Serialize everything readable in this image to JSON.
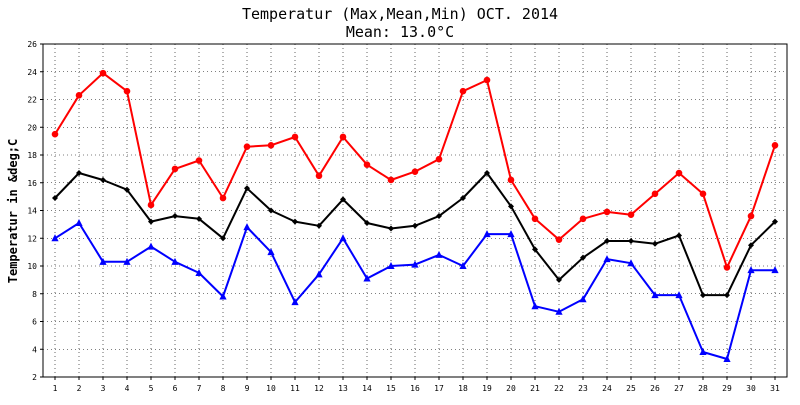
{
  "chart_data": {
    "type": "line",
    "title": "Temperatur (Max,Mean,Min) OCT. 2014",
    "subtitle": "Mean: 13.0°C",
    "xlabel": "",
    "ylabel": "Temperatur in &deg;C",
    "ylim": [
      2,
      26
    ],
    "yticks": [
      "2",
      "4",
      "6",
      "8",
      "10",
      "12",
      "14",
      "16",
      "18",
      "20",
      "22",
      "24",
      "26"
    ],
    "categories": [
      "1",
      "2",
      "3",
      "4",
      "5",
      "6",
      "7",
      "8",
      "9",
      "10",
      "11",
      "12",
      "13",
      "14",
      "15",
      "16",
      "17",
      "18",
      "19",
      "20",
      "21",
      "22",
      "23",
      "24",
      "25",
      "26",
      "27",
      "28",
      "29",
      "30",
      "31"
    ],
    "grid": true,
    "series": [
      {
        "name": "Max",
        "color": "#ff0000",
        "marker": "circle",
        "values": [
          19.5,
          22.3,
          23.9,
          22.6,
          14.4,
          17.0,
          17.6,
          14.9,
          18.6,
          18.7,
          19.3,
          16.5,
          19.3,
          17.3,
          16.2,
          16.8,
          17.7,
          22.6,
          23.4,
          16.2,
          13.4,
          11.9,
          13.4,
          13.9,
          13.7,
          15.2,
          16.7,
          15.2,
          9.9,
          13.6,
          18.7
        ]
      },
      {
        "name": "Mean",
        "color": "#000000",
        "marker": "diamond",
        "values": [
          14.9,
          16.7,
          16.2,
          15.5,
          13.2,
          13.6,
          13.4,
          12.0,
          15.6,
          14.0,
          13.2,
          12.9,
          14.8,
          13.1,
          12.7,
          12.9,
          13.6,
          14.9,
          16.7,
          14.3,
          11.2,
          9.0,
          10.6,
          11.8,
          11.8,
          11.6,
          12.2,
          7.9,
          7.9,
          11.5,
          13.2
        ]
      },
      {
        "name": "Min",
        "color": "#0000ff",
        "marker": "triangle",
        "values": [
          12.0,
          13.1,
          10.3,
          10.3,
          11.4,
          10.3,
          9.5,
          7.8,
          12.8,
          11.0,
          7.4,
          9.4,
          12.0,
          9.1,
          10.0,
          10.1,
          10.8,
          10.0,
          12.3,
          12.3,
          7.1,
          6.7,
          7.6,
          10.5,
          10.2,
          7.9,
          7.9,
          3.8,
          3.3,
          9.7,
          9.7
        ]
      }
    ]
  }
}
